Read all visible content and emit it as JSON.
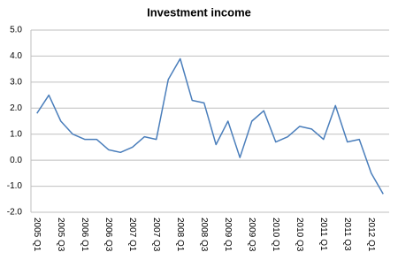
{
  "chart_data": {
    "type": "line",
    "title": "Investment income",
    "categories": [
      "2005 Q1",
      null,
      "2005 Q3",
      null,
      "2006 Q1",
      null,
      "2006 Q3",
      null,
      "2007 Q1",
      null,
      "2007 Q3",
      null,
      "2008 Q1",
      null,
      "2008 Q3",
      null,
      "2009 Q1",
      null,
      "2009 Q3",
      null,
      "2010 Q1",
      null,
      "2010 Q3",
      null,
      "2011 Q1",
      null,
      "2011 Q3",
      null,
      "2012 Q1",
      null
    ],
    "series": [
      {
        "name": "Investment income",
        "color": "#4a7ebb",
        "values": [
          1.8,
          2.5,
          1.5,
          1.0,
          0.8,
          0.8,
          0.4,
          0.3,
          0.5,
          0.9,
          0.8,
          3.1,
          3.9,
          2.3,
          2.2,
          0.6,
          1.5,
          0.1,
          1.5,
          1.9,
          0.7,
          0.9,
          1.3,
          1.2,
          0.8,
          2.1,
          0.7,
          0.8,
          -0.5,
          -1.3
        ]
      }
    ],
    "ylim": [
      -2,
      5
    ],
    "yticks": [
      {
        "value": -2,
        "label": "-2.0"
      },
      {
        "value": -1,
        "label": "-1.0"
      },
      {
        "value": 0,
        "label": "0.0"
      },
      {
        "value": 1,
        "label": "1.0"
      },
      {
        "value": 2,
        "label": "2.0"
      },
      {
        "value": 3,
        "label": "3.0"
      },
      {
        "value": 4,
        "label": "4.0"
      },
      {
        "value": 5,
        "label": "5.0"
      }
    ],
    "grid": true
  }
}
